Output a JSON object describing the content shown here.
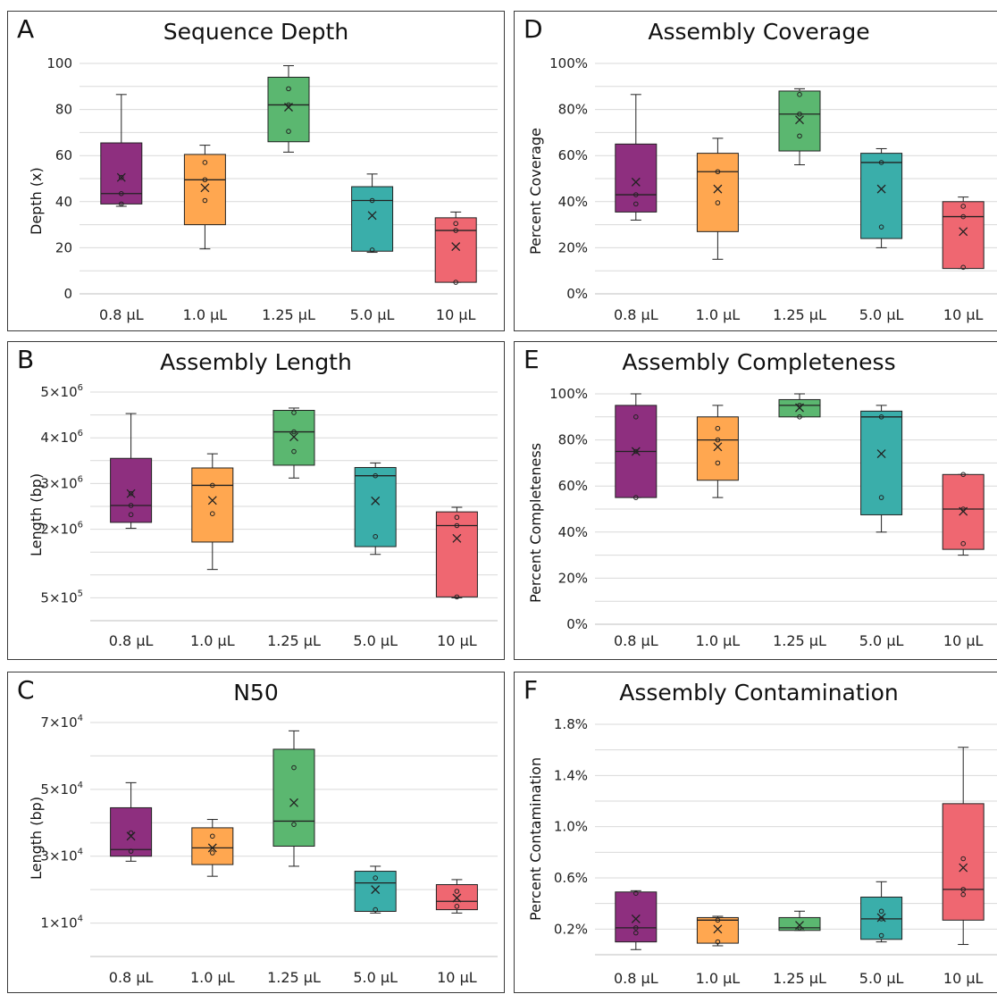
{
  "categories": [
    "0.8 µL",
    "1.0 µL",
    "1.25 µL",
    "5.0 µL",
    "10 µL"
  ],
  "colors": [
    "#8e2f7f",
    "#ffa750",
    "#5bb770",
    "#3aaeaa",
    "#ef6771"
  ],
  "chart_data": [
    {
      "panel": "A",
      "type": "box",
      "title": "Sequence Depth",
      "ylabel": "Depth (x)",
      "ylim": [
        0,
        100
      ],
      "yticks": [
        {
          "v": 0,
          "label": "0"
        },
        {
          "v": 20,
          "label": "20"
        },
        {
          "v": 40,
          "label": "40"
        },
        {
          "v": 60,
          "label": "60"
        },
        {
          "v": 80,
          "label": "80"
        },
        {
          "v": 100,
          "label": "100"
        }
      ],
      "grid_step": 10,
      "series": [
        {
          "min": 38,
          "q1": 39,
          "median": 43.5,
          "q3": 65.5,
          "max": 86.5,
          "mean": 50.5,
          "points": [
            39,
            43.5,
            50.5
          ]
        },
        {
          "min": 19.5,
          "q1": 30,
          "median": 49.5,
          "q3": 60.5,
          "max": 64.5,
          "mean": 46,
          "points": [
            40.5,
            49.5,
            57
          ]
        },
        {
          "min": 61.5,
          "q1": 66,
          "median": 82,
          "q3": 94,
          "max": 99,
          "mean": 81,
          "points": [
            70.5,
            82,
            89
          ]
        },
        {
          "min": 18,
          "q1": 18.5,
          "median": 40.5,
          "q3": 46.5,
          "max": 52,
          "mean": 34,
          "points": [
            19,
            40.5
          ]
        },
        {
          "min": 5,
          "q1": 5,
          "median": 27.5,
          "q3": 33,
          "max": 35.5,
          "mean": 20.5,
          "points": [
            5,
            27.5,
            30.5
          ]
        }
      ]
    },
    {
      "panel": "B",
      "type": "box",
      "title": "Assembly Length",
      "ylabel": "Length (bp)",
      "ylim": [
        0,
        5
      ],
      "yticks": [
        {
          "v": 0.5,
          "label": "5×10",
          "exp": "5"
        },
        {
          "v": 2,
          "label": "2×10",
          "exp": "6"
        },
        {
          "v": 3,
          "label": "3×10",
          "exp": "6"
        },
        {
          "v": 4,
          "label": "4×10",
          "exp": "6"
        },
        {
          "v": 5,
          "label": "5×10",
          "exp": "6"
        }
      ],
      "grid_step": 0.5,
      "series": [
        {
          "min": 2.02,
          "q1": 2.15,
          "median": 2.52,
          "q3": 3.55,
          "max": 4.53,
          "mean": 2.78,
          "points": [
            2.32,
            2.52,
            2.78
          ]
        },
        {
          "min": 1.12,
          "q1": 1.72,
          "median": 2.96,
          "q3": 3.34,
          "max": 3.65,
          "mean": 2.63,
          "points": [
            2.34,
            2.96
          ]
        },
        {
          "min": 3.12,
          "q1": 3.4,
          "median": 4.13,
          "q3": 4.6,
          "max": 4.65,
          "mean": 4.02,
          "points": [
            3.7,
            4.13,
            4.55
          ]
        },
        {
          "min": 1.45,
          "q1": 1.62,
          "median": 3.17,
          "q3": 3.35,
          "max": 3.45,
          "mean": 2.62,
          "points": [
            1.84,
            3.17
          ]
        },
        {
          "min": 0.5,
          "q1": 0.52,
          "median": 2.08,
          "q3": 2.38,
          "max": 2.48,
          "mean": 1.8,
          "points": [
            0.52,
            2.08,
            2.26
          ]
        }
      ]
    },
    {
      "panel": "C",
      "type": "box",
      "title": "N50",
      "ylabel": "Length (bp)",
      "ylim": [
        0,
        7
      ],
      "yticks": [
        {
          "v": 1,
          "label": "1×10",
          "exp": "4"
        },
        {
          "v": 3,
          "label": "3×10",
          "exp": "4"
        },
        {
          "v": 5,
          "label": "5×10",
          "exp": "4"
        },
        {
          "v": 7,
          "label": "7×10",
          "exp": "4"
        }
      ],
      "grid_step": 1,
      "series": [
        {
          "min": 2.85,
          "q1": 3.0,
          "median": 3.2,
          "q3": 4.45,
          "max": 5.2,
          "mean": 3.6,
          "points": [
            3.15,
            3.7
          ]
        },
        {
          "min": 2.4,
          "q1": 2.75,
          "median": 3.25,
          "q3": 3.85,
          "max": 4.1,
          "mean": 3.25,
          "points": [
            3.1,
            3.6
          ]
        },
        {
          "min": 2.7,
          "q1": 3.3,
          "median": 4.05,
          "q3": 6.2,
          "max": 6.75,
          "mean": 4.6,
          "points": [
            3.95,
            5.65
          ]
        },
        {
          "min": 1.3,
          "q1": 1.35,
          "median": 2.2,
          "q3": 2.55,
          "max": 2.7,
          "mean": 2.0,
          "points": [
            1.4,
            2.35
          ]
        },
        {
          "min": 1.3,
          "q1": 1.4,
          "median": 1.65,
          "q3": 2.15,
          "max": 2.3,
          "mean": 1.75,
          "points": [
            1.5,
            1.95
          ]
        }
      ]
    },
    {
      "panel": "D",
      "type": "box",
      "title": "Assembly Coverage",
      "ylabel": "Percent Coverage",
      "ylim": [
        0,
        100
      ],
      "yticks": [
        {
          "v": 0,
          "label": "0%"
        },
        {
          "v": 20,
          "label": "20%"
        },
        {
          "v": 40,
          "label": "40%"
        },
        {
          "v": 60,
          "label": "60%"
        },
        {
          "v": 80,
          "label": "80%"
        },
        {
          "v": 100,
          "label": "100%"
        }
      ],
      "grid_step": 10,
      "series": [
        {
          "min": 32,
          "q1": 35.5,
          "median": 43,
          "q3": 65,
          "max": 86.5,
          "mean": 48.5,
          "points": [
            39,
            43
          ]
        },
        {
          "min": 15,
          "q1": 27,
          "median": 53,
          "q3": 61,
          "max": 67.5,
          "mean": 45.5,
          "points": [
            39.5,
            53
          ]
        },
        {
          "min": 56,
          "q1": 62,
          "median": 78,
          "q3": 88,
          "max": 89,
          "mean": 75.5,
          "points": [
            68.5,
            78,
            86.5
          ]
        },
        {
          "min": 20,
          "q1": 24,
          "median": 57,
          "q3": 61,
          "max": 63,
          "mean": 45.5,
          "points": [
            29,
            57
          ]
        },
        {
          "min": 11,
          "q1": 11,
          "median": 33.5,
          "q3": 40,
          "max": 42,
          "mean": 27,
          "points": [
            11.5,
            33.5,
            38
          ]
        }
      ]
    },
    {
      "panel": "E",
      "type": "box",
      "title": "Assembly Completeness",
      "ylabel": "Percent Completeness",
      "ylim": [
        0,
        100
      ],
      "yticks": [
        {
          "v": 0,
          "label": "0%"
        },
        {
          "v": 20,
          "label": "20%"
        },
        {
          "v": 40,
          "label": "40%"
        },
        {
          "v": 60,
          "label": "60%"
        },
        {
          "v": 80,
          "label": "80%"
        },
        {
          "v": 100,
          "label": "100%"
        }
      ],
      "grid_step": 10,
      "series": [
        {
          "min": 55,
          "q1": 55,
          "median": 75,
          "q3": 95,
          "max": 100,
          "mean": 75,
          "points": [
            55,
            75,
            90
          ]
        },
        {
          "min": 55,
          "q1": 62.5,
          "median": 80,
          "q3": 90,
          "max": 95,
          "mean": 77,
          "points": [
            70,
            80,
            85
          ]
        },
        {
          "min": 90,
          "q1": 90,
          "median": 95,
          "q3": 97.5,
          "max": 100,
          "mean": 94,
          "points": [
            90,
            95
          ]
        },
        {
          "min": 40,
          "q1": 47.5,
          "median": 90,
          "q3": 92.5,
          "max": 95,
          "mean": 74,
          "points": [
            55,
            90
          ]
        },
        {
          "min": 30,
          "q1": 32.5,
          "median": 50,
          "q3": 65,
          "max": 65,
          "mean": 49,
          "points": [
            35,
            50,
            65
          ]
        }
      ]
    },
    {
      "panel": "F",
      "type": "box",
      "title": "Assembly Contamination",
      "ylabel": "Percent Contamination",
      "ylim": [
        0,
        1.8
      ],
      "yticks": [
        {
          "v": 0.2,
          "label": "0.2%"
        },
        {
          "v": 0.6,
          "label": "0.6%"
        },
        {
          "v": 1.0,
          "label": "1.0%"
        },
        {
          "v": 1.4,
          "label": "1.4%"
        },
        {
          "v": 1.8,
          "label": "1.8%"
        }
      ],
      "grid_step": 0.2,
      "series": [
        {
          "min": 0.04,
          "q1": 0.1,
          "median": 0.21,
          "q3": 0.49,
          "max": 0.5,
          "mean": 0.28,
          "points": [
            0.17,
            0.21,
            0.48
          ]
        },
        {
          "min": 0.07,
          "q1": 0.09,
          "median": 0.27,
          "q3": 0.29,
          "max": 0.3,
          "mean": 0.2,
          "points": [
            0.1,
            0.27
          ]
        },
        {
          "min": 0.19,
          "q1": 0.19,
          "median": 0.21,
          "q3": 0.29,
          "max": 0.34,
          "mean": 0.23,
          "points": [
            0.21
          ]
        },
        {
          "min": 0.1,
          "q1": 0.12,
          "median": 0.28,
          "q3": 0.45,
          "max": 0.57,
          "mean": 0.29,
          "points": [
            0.15,
            0.28,
            0.34
          ]
        },
        {
          "min": 0.08,
          "q1": 0.27,
          "median": 0.51,
          "q3": 1.18,
          "max": 1.62,
          "mean": 0.68,
          "points": [
            0.47,
            0.51,
            0.75
          ]
        }
      ]
    }
  ]
}
